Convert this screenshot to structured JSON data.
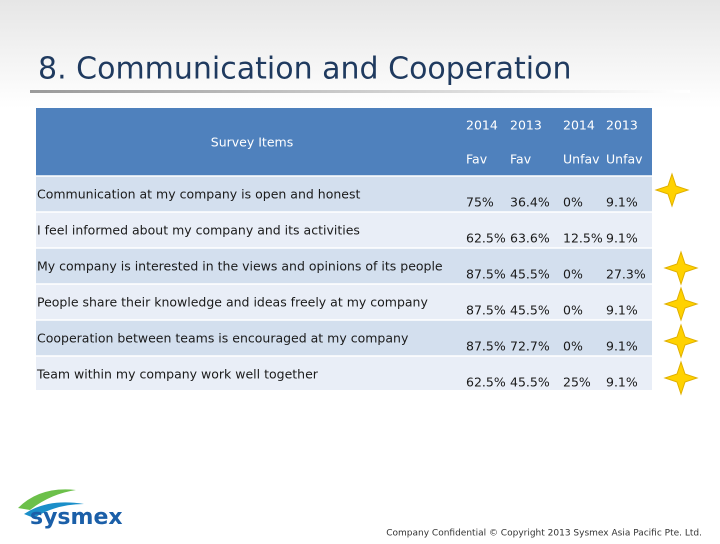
{
  "title": "8. Communication and Cooperation",
  "table": {
    "header": {
      "item": "Survey Items",
      "years": [
        "2014",
        "2013",
        "2014",
        "2013"
      ],
      "kinds": [
        "Fav",
        "Fav",
        "Unfav",
        "Unfav"
      ]
    },
    "rows": [
      {
        "item": "Communication at my company is open and honest",
        "values": [
          "75%",
          "36.4%",
          "0%",
          "9.1%"
        ]
      },
      {
        "item": "I feel informed about my company and its activities",
        "values": [
          "62.5%",
          "63.6%",
          "12.5%",
          "9.1%"
        ]
      },
      {
        "item": "My company is interested in the views and opinions of its people",
        "values": [
          "87.5%",
          "45.5%",
          "0%",
          "27.3%"
        ]
      },
      {
        "item": "People share their knowledge and ideas freely at my company",
        "values": [
          "87.5%",
          "45.5%",
          "0%",
          "9.1%"
        ]
      },
      {
        "item": "Cooperation between teams is encouraged at my company",
        "values": [
          "87.5%",
          "72.7%",
          "0%",
          "9.1%"
        ]
      },
      {
        "item": "Team within my company work well together",
        "values": [
          "62.5%",
          "45.5%",
          "25%",
          "9.1%"
        ]
      }
    ]
  },
  "footer": {
    "logo": "sysmex",
    "copyright": "Company Confidential © Copyright 2013 Sysmex Asia Pacific Pte. Ltd."
  }
}
